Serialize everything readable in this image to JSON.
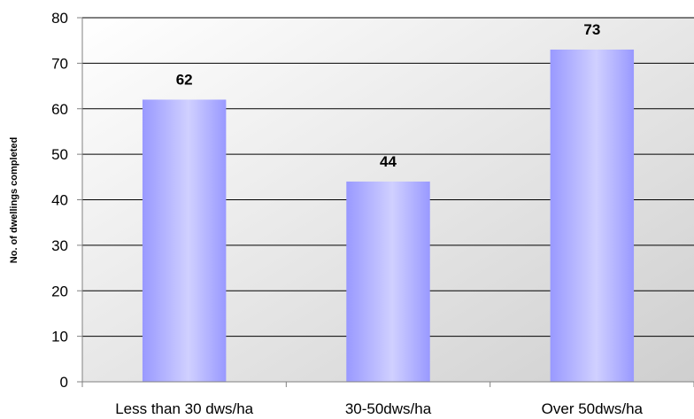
{
  "chart_data": {
    "type": "bar",
    "title": "",
    "xlabel": "",
    "ylabel": "No. of dwellings completed",
    "categories": [
      "Less than 30 dws/ha",
      "30-50dws/ha",
      "Over 50dws/ha"
    ],
    "values": [
      62,
      44,
      73
    ],
    "data_labels": [
      "62",
      "44",
      "73"
    ],
    "ylim": [
      0,
      80
    ],
    "yticks": [
      0,
      10,
      20,
      30,
      40,
      50,
      60,
      70,
      80
    ],
    "grid": true,
    "legend": "none",
    "colors": {
      "bar_edge": "#9999ff",
      "bar_center": "#ccccff",
      "plot_bg_top": "#ffffff",
      "plot_bg_bottom": "#cfcfcf",
      "gridline": "#000000"
    }
  }
}
